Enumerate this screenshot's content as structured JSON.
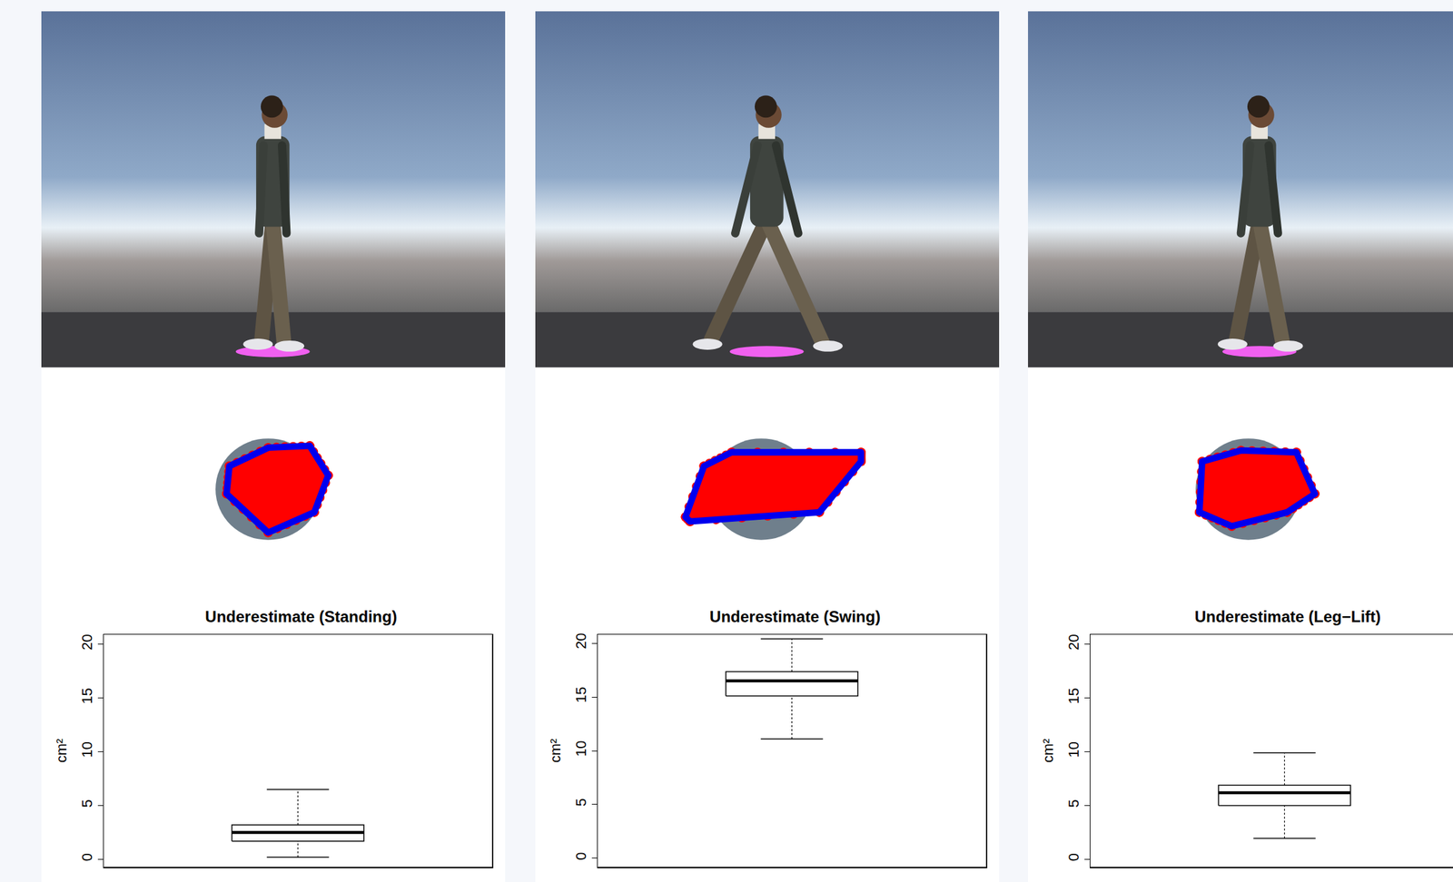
{
  "chart_data": [
    {
      "type": "box",
      "title": "Underestimate (Standing)",
      "ylabel": "cm²",
      "ylim": [
        -0.7,
        20.9
      ],
      "yticks": [
        0,
        5,
        10,
        15,
        20
      ],
      "tick_labels": "y",
      "box": {
        "lower_whisker": 0.2,
        "q1": 1.7,
        "median": 2.5,
        "q3": 3.2,
        "upper_whisker": 6.5
      }
    },
    {
      "type": "box",
      "title": "Underestimate (Swing)",
      "ylabel": "cm²",
      "ylim": [
        -0.8,
        20.8
      ],
      "yticks": [
        0,
        5,
        10,
        15,
        20
      ],
      "tick_labels": "y",
      "box": {
        "lower_whisker": 11.1,
        "q1": 15.1,
        "median": 16.5,
        "q3": 17.35,
        "upper_whisker": 20.4
      }
    },
    {
      "type": "box",
      "title": "Underestimate (Leg−Lift)",
      "ylabel": "cm²",
      "ylim": [
        -0.7,
        20.9
      ],
      "yticks": [
        0,
        5,
        10,
        15,
        20
      ],
      "tick_labels": "y",
      "box": {
        "lower_whisker": 1.95,
        "q1": 5.0,
        "median": 6.2,
        "q3": 6.9,
        "upper_whisker": 9.9
      }
    }
  ]
}
